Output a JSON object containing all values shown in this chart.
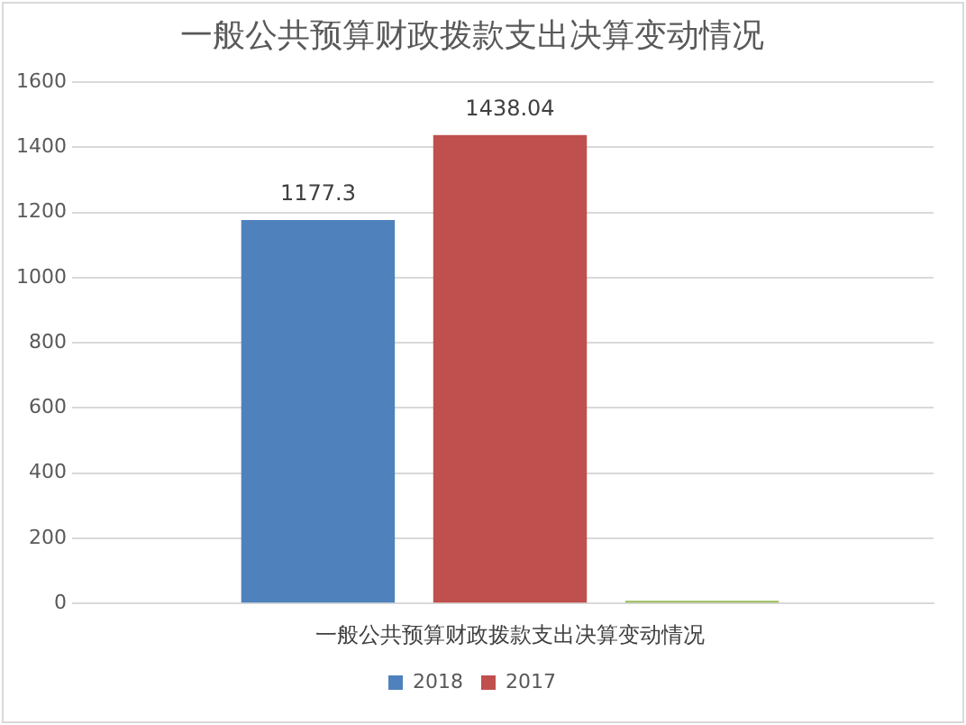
{
  "chart_data": {
    "type": "bar",
    "title": "一般公共预算财政拨款支出决算变动情况",
    "categories": [
      "一般公共预算财政拨款支出决算变动情况"
    ],
    "series": [
      {
        "name": "2018",
        "color": "#4f81bd",
        "values": [
          1177.3
        ],
        "value_labels": [
          "1177.3"
        ]
      },
      {
        "name": "2017",
        "color": "#c0504d",
        "values": [
          1438.04
        ],
        "value_labels": [
          "1438.04"
        ]
      },
      {
        "color": "#9bbb59",
        "values": [
          8
        ],
        "value_labels": [
          null
        ]
      }
    ],
    "ylim": [
      0,
      1600
    ],
    "yticks": [
      0,
      200,
      400,
      600,
      800,
      1000,
      1200,
      1400,
      1600
    ],
    "grid": "y",
    "legend": "bottom"
  }
}
